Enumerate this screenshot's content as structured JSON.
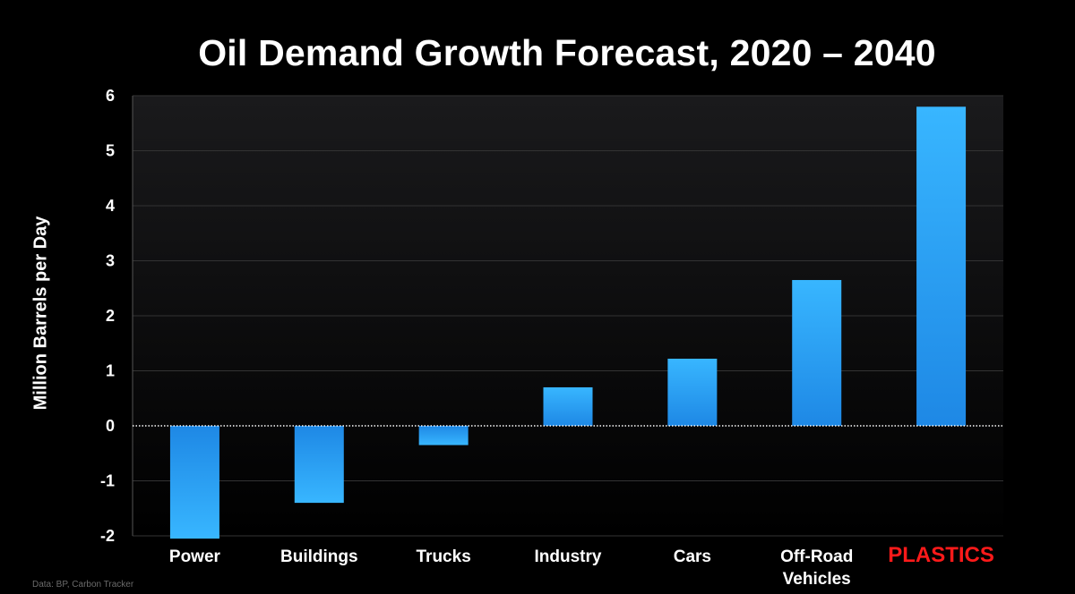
{
  "slide": {
    "title": "Oil Demand Growth Forecast, 2020 – 2040",
    "source": "Data: BP, Carbon Tracker"
  },
  "colors": {
    "background": "#000000",
    "bar_top": "#38b6ff",
    "bar_bottom": "#1e88e5",
    "highlight_label": "#ff1a1a",
    "text": "#ffffff",
    "grid": "#333333"
  },
  "chart_data": {
    "type": "bar",
    "title": "Oil Demand Growth Forecast, 2020 – 2040",
    "xlabel": "",
    "ylabel": "Million Barrels per Day",
    "ylim": [
      -2,
      6
    ],
    "yticks": [
      6,
      5,
      4,
      3,
      2,
      1,
      0,
      -1,
      -2
    ],
    "grid": true,
    "categories": [
      "Power",
      "Buildings",
      "Trucks",
      "Industry",
      "Cars",
      "Off-Road\nVehicles",
      "PLASTICS"
    ],
    "values": [
      -2.05,
      -1.4,
      -0.35,
      0.7,
      1.22,
      2.65,
      5.8
    ],
    "highlight_category": "PLASTICS"
  }
}
